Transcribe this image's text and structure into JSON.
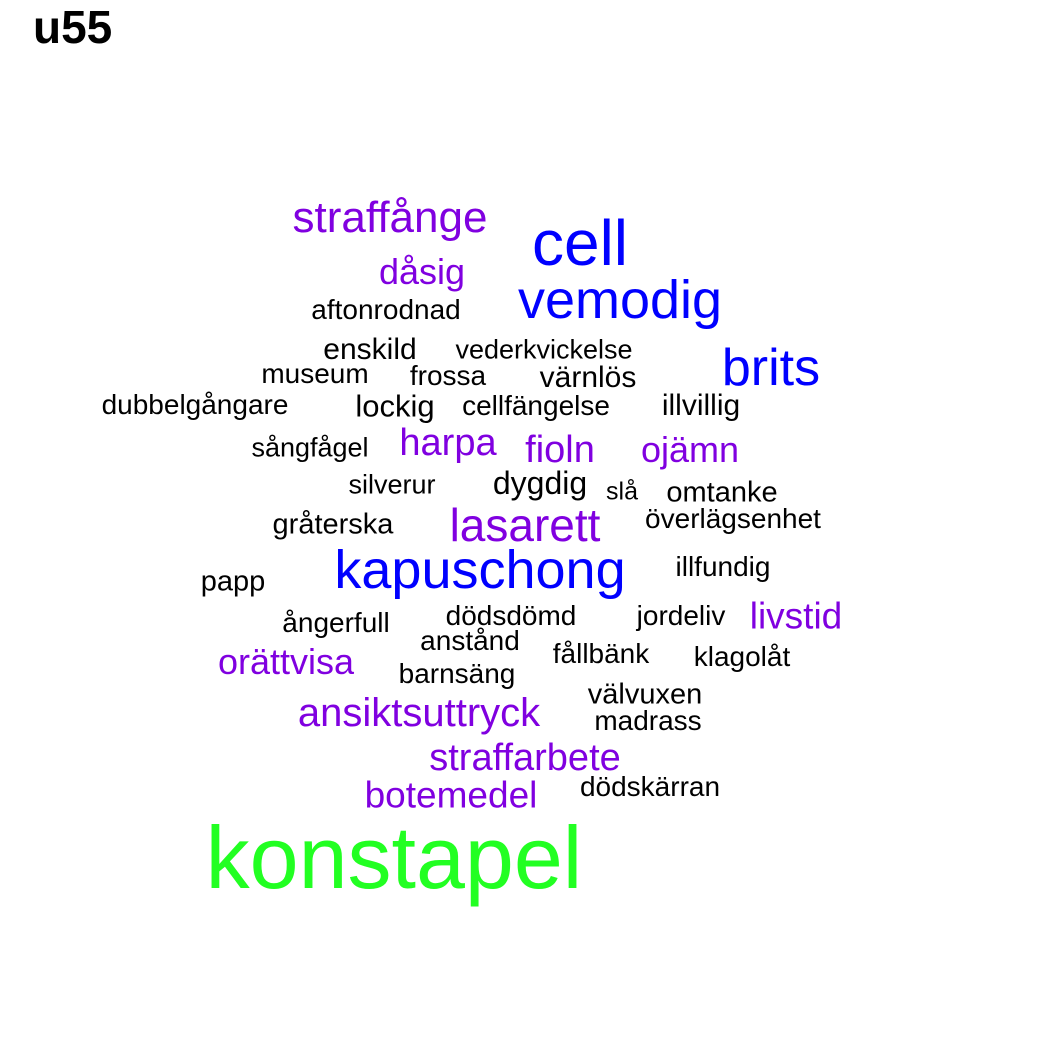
{
  "title": "u55",
  "palette": {
    "black": "#000000",
    "purple": "#8000e0",
    "blue": "#0000ff",
    "green": "#22ff22"
  },
  "words": [
    {
      "text": "cell",
      "color": "blue"
    },
    {
      "text": "straffånge",
      "color": "purple"
    },
    {
      "text": "dåsig",
      "color": "purple"
    },
    {
      "text": "vemodig",
      "color": "blue"
    },
    {
      "text": "aftonrodnad",
      "color": "black"
    },
    {
      "text": "enskild",
      "color": "black"
    },
    {
      "text": "vederkvickelse",
      "color": "black"
    },
    {
      "text": "brits",
      "color": "blue"
    },
    {
      "text": "museum",
      "color": "black"
    },
    {
      "text": "frossa",
      "color": "black"
    },
    {
      "text": "värnlös",
      "color": "black"
    },
    {
      "text": "dubbelgångare",
      "color": "black"
    },
    {
      "text": "lockig",
      "color": "black"
    },
    {
      "text": "cellfängelse",
      "color": "black"
    },
    {
      "text": "illvillig",
      "color": "black"
    },
    {
      "text": "sångfågel",
      "color": "black"
    },
    {
      "text": "harpa",
      "color": "purple"
    },
    {
      "text": "fioln",
      "color": "purple"
    },
    {
      "text": "ojämn",
      "color": "purple"
    },
    {
      "text": "silverur",
      "color": "black"
    },
    {
      "text": "dygdig",
      "color": "black"
    },
    {
      "text": "slå",
      "color": "black"
    },
    {
      "text": "omtanke",
      "color": "black"
    },
    {
      "text": "gråterska",
      "color": "black"
    },
    {
      "text": "lasarett",
      "color": "purple"
    },
    {
      "text": "överlägsenhet",
      "color": "black"
    },
    {
      "text": "kapuschong",
      "color": "blue"
    },
    {
      "text": "illfundig",
      "color": "black"
    },
    {
      "text": "papp",
      "color": "black"
    },
    {
      "text": "ångerfull",
      "color": "black"
    },
    {
      "text": "dödsdömd",
      "color": "black"
    },
    {
      "text": "jordeliv",
      "color": "black"
    },
    {
      "text": "livstid",
      "color": "purple"
    },
    {
      "text": "anstånd",
      "color": "black"
    },
    {
      "text": "orättvisa",
      "color": "purple"
    },
    {
      "text": "fållbänk",
      "color": "black"
    },
    {
      "text": "klagolåt",
      "color": "black"
    },
    {
      "text": "barnsäng",
      "color": "black"
    },
    {
      "text": "välvuxen",
      "color": "black"
    },
    {
      "text": "ansiktsuttryck",
      "color": "purple"
    },
    {
      "text": "madrass",
      "color": "black"
    },
    {
      "text": "straffarbete",
      "color": "purple"
    },
    {
      "text": "botemedel",
      "color": "purple"
    },
    {
      "text": "dödskärran",
      "color": "black"
    },
    {
      "text": "konstapel",
      "color": "green"
    }
  ]
}
